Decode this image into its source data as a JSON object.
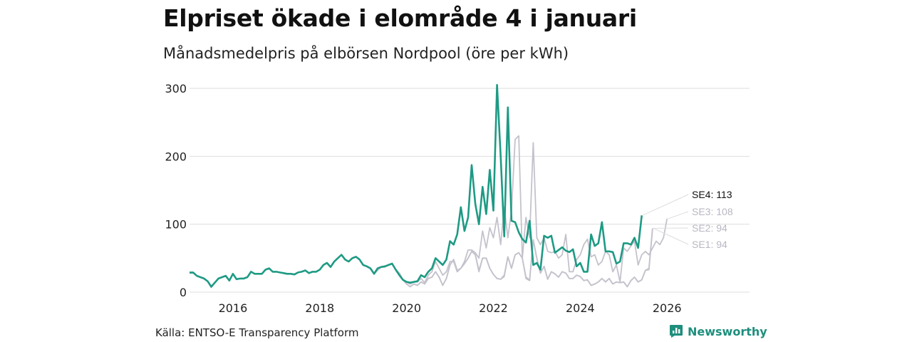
{
  "title": "Elpriset ökade i elområde 4 i januari",
  "subtitle": "Månadsmedelpris på elbörsen Nordpool (öre per kWh)",
  "source": "Källa: ENTSO-E Transparency Platform",
  "brand": {
    "name": "Newsworthy",
    "icon": "bar-chart-logo-icon"
  },
  "colors": {
    "highlight": "#1e9a84",
    "muted": "#c4c2cc",
    "grid": "#dddddd"
  },
  "chart_data": {
    "type": "line",
    "title": "Elpriset ökade i elområde 4 i januari",
    "ylabel": "öre per kWh",
    "xlabel": "",
    "ylim": [
      0,
      300
    ],
    "xlim": [
      2015.0,
      2027.9
    ],
    "grid": true,
    "yticks": [
      {
        "value": 0,
        "label": "0"
      },
      {
        "value": 100,
        "label": "100"
      },
      {
        "value": 200,
        "label": "200"
      },
      {
        "value": 300,
        "label": "300"
      }
    ],
    "xticks": [
      {
        "value": 2016,
        "label": "2016"
      },
      {
        "value": 2018,
        "label": "2018"
      },
      {
        "value": 2020,
        "label": "2020"
      },
      {
        "value": 2022,
        "label": "2022"
      },
      {
        "value": 2024,
        "label": "2024"
      },
      {
        "value": 2026,
        "label": "2026"
      }
    ],
    "series": [
      {
        "name": "SE1",
        "label": "SE1: 94",
        "highlight": false,
        "values": [
          28,
          28,
          24,
          22,
          20,
          16,
          7,
          14,
          20,
          22,
          24,
          17,
          27,
          19,
          20,
          20,
          22,
          30,
          27,
          27,
          27,
          33,
          35,
          30,
          30,
          29,
          28,
          27,
          27,
          26,
          29,
          30,
          32,
          28,
          30,
          30,
          33,
          40,
          43,
          37,
          45,
          50,
          55,
          48,
          45,
          50,
          52,
          48,
          40,
          38,
          35,
          27,
          32,
          37,
          37,
          40,
          42,
          33,
          28,
          18,
          12,
          8,
          12,
          10,
          15,
          12,
          20,
          22,
          30,
          22,
          10,
          20,
          40,
          48,
          32,
          35,
          42,
          50,
          60,
          55,
          30,
          50,
          50,
          35,
          26,
          20,
          19,
          23,
          52,
          35,
          55,
          58,
          50,
          20,
          17,
          77,
          50,
          28,
          38,
          19,
          30,
          27,
          22,
          30,
          28,
          20,
          20,
          25,
          23,
          17,
          18,
          10,
          12,
          15,
          20,
          15,
          20,
          12,
          15,
          14,
          15,
          8,
          17,
          22,
          15,
          18,
          32,
          33,
          94
        ]
      },
      {
        "name": "SE2",
        "label": "SE2: 94",
        "highlight": false,
        "values": [
          28,
          28,
          24,
          22,
          20,
          16,
          7,
          14,
          20,
          22,
          24,
          17,
          27,
          19,
          20,
          20,
          22,
          30,
          27,
          27,
          27,
          33,
          35,
          30,
          30,
          29,
          28,
          27,
          27,
          26,
          29,
          30,
          32,
          28,
          30,
          30,
          33,
          40,
          43,
          37,
          45,
          50,
          55,
          48,
          45,
          50,
          52,
          48,
          40,
          38,
          35,
          27,
          32,
          37,
          37,
          40,
          42,
          33,
          28,
          18,
          12,
          8,
          12,
          10,
          15,
          12,
          20,
          22,
          30,
          22,
          10,
          20,
          40,
          48,
          32,
          35,
          42,
          50,
          60,
          55,
          32,
          50,
          50,
          35,
          26,
          20,
          19,
          25,
          52,
          35,
          55,
          58,
          50,
          22,
          18,
          77,
          50,
          28,
          38,
          19,
          30,
          27,
          22,
          30,
          28,
          20,
          20,
          25,
          23,
          17,
          18,
          10,
          12,
          15,
          20,
          15,
          20,
          12,
          15,
          14,
          15,
          8,
          17,
          22,
          15,
          18,
          32,
          35,
          94
        ]
      },
      {
        "name": "SE3",
        "label": "SE3: 108",
        "highlight": false,
        "values": [
          29,
          29,
          24,
          22,
          20,
          16,
          8,
          14,
          20,
          22,
          24,
          17,
          27,
          19,
          20,
          20,
          22,
          30,
          27,
          27,
          27,
          33,
          35,
          30,
          30,
          29,
          28,
          27,
          27,
          26,
          29,
          30,
          32,
          28,
          30,
          30,
          33,
          40,
          43,
          37,
          45,
          50,
          55,
          48,
          45,
          50,
          52,
          48,
          40,
          38,
          35,
          27,
          35,
          37,
          38,
          40,
          42,
          33,
          25,
          18,
          15,
          12,
          15,
          15,
          20,
          14,
          25,
          30,
          45,
          35,
          25,
          30,
          45,
          45,
          30,
          35,
          45,
          62,
          62,
          58,
          50,
          90,
          65,
          95,
          80,
          110,
          70,
          125,
          80,
          120,
          225,
          230,
          50,
          110,
          80,
          220,
          80,
          70,
          80,
          60,
          58,
          60,
          50,
          55,
          85,
          30,
          30,
          48,
          55,
          70,
          78,
          52,
          55,
          40,
          45,
          60,
          55,
          30,
          40,
          15,
          65,
          60,
          68,
          75,
          40,
          55,
          60,
          55,
          65,
          75,
          70,
          80,
          108
        ]
      },
      {
        "name": "SE4",
        "label": "SE4: 113",
        "highlight": true,
        "values": [
          29,
          29,
          24,
          22,
          20,
          16,
          8,
          14,
          20,
          22,
          24,
          17,
          27,
          19,
          20,
          20,
          22,
          30,
          27,
          27,
          27,
          33,
          35,
          30,
          30,
          29,
          28,
          27,
          27,
          26,
          29,
          30,
          32,
          28,
          30,
          30,
          33,
          40,
          43,
          37,
          45,
          50,
          55,
          48,
          45,
          50,
          52,
          48,
          40,
          38,
          35,
          27,
          35,
          37,
          38,
          40,
          42,
          33,
          25,
          18,
          15,
          14,
          15,
          16,
          25,
          22,
          30,
          35,
          50,
          45,
          40,
          48,
          75,
          70,
          85,
          125,
          90,
          110,
          187,
          130,
          100,
          155,
          115,
          180,
          120,
          305,
          200,
          82,
          272,
          105,
          103,
          88,
          78,
          73,
          105,
          40,
          43,
          33,
          83,
          80,
          83,
          58,
          62,
          66,
          61,
          59,
          63,
          38,
          43,
          30,
          30,
          85,
          68,
          72,
          103,
          60,
          60,
          59,
          42,
          45,
          72,
          72,
          70,
          80,
          65,
          113
        ]
      }
    ]
  }
}
